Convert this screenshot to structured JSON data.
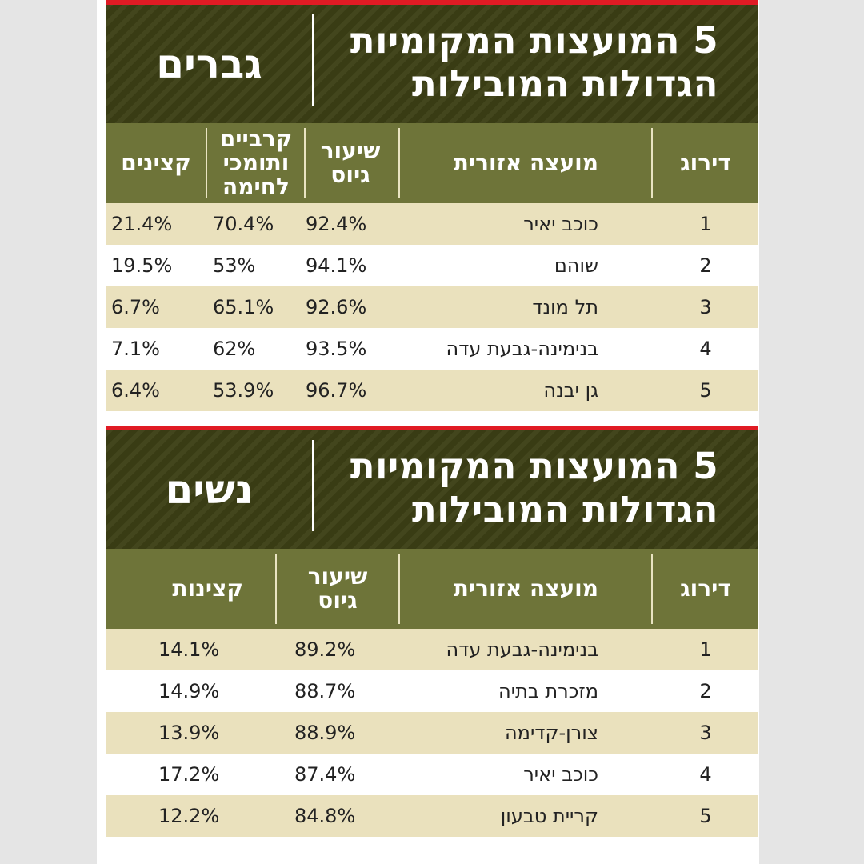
{
  "men": {
    "title_line1": "5 המועצות המקומיות",
    "title_line2": "הגדולות המובילות",
    "gender": "גברים",
    "headers": {
      "rank": "דירוג",
      "council": "מועצה אזורית",
      "draft": "שיעור גיוס",
      "combat": "קרביים ותומכי לחימה",
      "officers": "קצינים"
    },
    "rows": [
      {
        "rank": "1",
        "council": "כוכב יאיר",
        "draft": "92.4%",
        "combat": "70.4%",
        "officers": "21.4%"
      },
      {
        "rank": "2",
        "council": "שוהם",
        "draft": "94.1%",
        "combat": "53%",
        "officers": "19.5%"
      },
      {
        "rank": "3",
        "council": "תל מונד",
        "draft": "92.6%",
        "combat": "65.1%",
        "officers": "6.7%"
      },
      {
        "rank": "4",
        "council": "בנימינה-גבעת עדה",
        "draft": "93.5%",
        "combat": "62%",
        "officers": "7.1%"
      },
      {
        "rank": "5",
        "council": "גן יבנה",
        "draft": "96.7%",
        "combat": "53.9%",
        "officers": "6.4%"
      }
    ]
  },
  "women": {
    "title_line1": "5 המועצות המקומיות",
    "title_line2": "הגדולות המובילות",
    "gender": "נשים",
    "headers": {
      "rank": "דירוג",
      "council": "מועצה אזורית",
      "draft": "שיעור גיוס",
      "officers": "קצינות"
    },
    "rows": [
      {
        "rank": "1",
        "council": "בנימינה-גבעת עדה",
        "draft": "89.2%",
        "officers": "14.1%"
      },
      {
        "rank": "2",
        "council": "מזכרת בתיה",
        "draft": "88.7%",
        "officers": "14.9%"
      },
      {
        "rank": "3",
        "council": "צורן-קדימה",
        "draft": "88.9%",
        "officers": "13.9%"
      },
      {
        "rank": "4",
        "council": "כוכב יאיר",
        "draft": "87.4%",
        "officers": "17.2%"
      },
      {
        "rank": "5",
        "council": "קריית טבעון",
        "draft": "84.8%",
        "officers": "12.2%"
      }
    ]
  },
  "colors": {
    "banner": "#3c3f15",
    "header": "#6e7439",
    "row_shade": "#eae1bd",
    "accent_red": "#e01b24"
  }
}
